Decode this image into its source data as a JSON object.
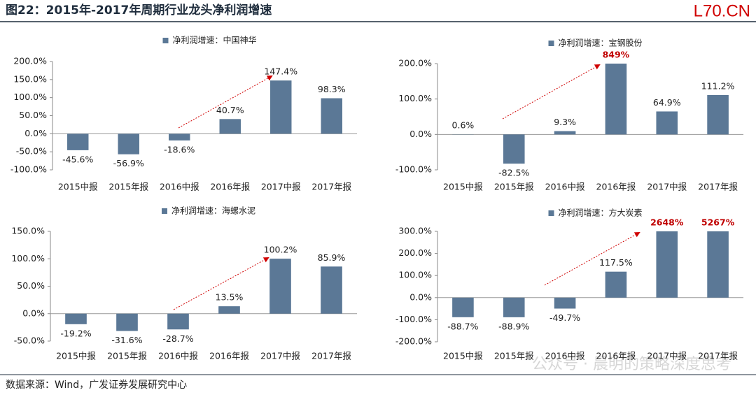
{
  "title": "图22：2015年-2017年周期行业龙头净利润增速",
  "logo": "L70.CN",
  "source": "数据来源：Wind，广发证券发展研究中心",
  "watermark": "公众号 · 晨明的策略深度思考",
  "chart_data": [
    {
      "type": "bar",
      "categories": [
        "2015中报",
        "2015年报",
        "2016中报",
        "2016年报",
        "2017中报",
        "2017年报"
      ],
      "series": [
        {
          "name": "净利润增速：中国神华",
          "color": "#5b7896",
          "values": [
            -45.6,
            -56.9,
            -18.6,
            40.7,
            147.4,
            98.3
          ],
          "value_labels": [
            "-45.6%",
            "-56.9%",
            "-18.6%",
            "40.7%",
            "147.4%",
            "98.3%"
          ]
        }
      ],
      "ylim": [
        -100,
        200
      ],
      "yticks": [
        {
          "value": -100,
          "label": "-100.0%"
        },
        {
          "value": -50,
          "label": "-50.0%"
        },
        {
          "value": 0,
          "label": "0.0%"
        },
        {
          "value": 50,
          "label": "50.0%"
        },
        {
          "value": 100,
          "label": "100.0%"
        },
        {
          "value": 150,
          "label": "150.0%"
        },
        {
          "value": 200,
          "label": "200.0%"
        }
      ],
      "clipped_label_color": "#c00000",
      "legend": "top"
    },
    {
      "type": "bar",
      "categories": [
        "2015中报",
        "2015年报",
        "2016中报",
        "2016年报",
        "2017中报",
        "2017年报"
      ],
      "series": [
        {
          "name": "净利润增速：宝钢股份",
          "color": "#5b7896",
          "values": [
            0.6,
            -82.5,
            9.3,
            849,
            64.9,
            111.2
          ],
          "value_labels": [
            "0.6%",
            "-82.5%",
            "9.3%",
            "849%",
            "64.9%",
            "111.2%"
          ]
        }
      ],
      "ylim": [
        -100,
        200
      ],
      "yticks": [
        {
          "value": -100,
          "label": "-100.0%"
        },
        {
          "value": 0,
          "label": "0.0%"
        },
        {
          "value": 100,
          "label": "100.0%"
        },
        {
          "value": 200,
          "label": "200.0%"
        }
      ],
      "clipped_label_color": "#c00000",
      "legend": "top"
    },
    {
      "type": "bar",
      "categories": [
        "2015中报",
        "2015年报",
        "2016中报",
        "2016年报",
        "2017中报",
        "2017年报"
      ],
      "series": [
        {
          "name": "净利润增速：海螺水泥",
          "color": "#5b7896",
          "values": [
            -19.2,
            -31.6,
            -28.7,
            13.5,
            100.2,
            85.9
          ],
          "value_labels": [
            "-19.2%",
            "-31.6%",
            "-28.7%",
            "13.5%",
            "100.2%",
            "85.9%"
          ]
        }
      ],
      "ylim": [
        -50,
        150
      ],
      "yticks": [
        {
          "value": -50,
          "label": "-50.0%"
        },
        {
          "value": 0,
          "label": "0.0%"
        },
        {
          "value": 50,
          "label": "50.0%"
        },
        {
          "value": 100,
          "label": "100.0%"
        },
        {
          "value": 150,
          "label": "150.0%"
        }
      ],
      "clipped_label_color": "#c00000",
      "legend": "top"
    },
    {
      "type": "bar",
      "categories": [
        "2015中报",
        "2015年报",
        "2016中报",
        "2016年报",
        "2017中报",
        "2017年报"
      ],
      "series": [
        {
          "name": "净利润增速：方大炭素",
          "color": "#5b7896",
          "values": [
            -88.7,
            -88.9,
            -49.7,
            117.5,
            2648,
            5267
          ],
          "value_labels": [
            "-88.7%",
            "-88.9%",
            "-49.7%",
            "117.5%",
            "2648%",
            "5267%"
          ]
        }
      ],
      "ylim": [
        -200,
        300
      ],
      "yticks": [
        {
          "value": -200,
          "label": "-200.0%"
        },
        {
          "value": -100,
          "label": "-100.0%"
        },
        {
          "value": 0,
          "label": "0.0%"
        },
        {
          "value": 100,
          "label": "100.0%"
        },
        {
          "value": 200,
          "label": "200.0%"
        },
        {
          "value": 300,
          "label": "300.0%"
        }
      ],
      "clipped_label_color": "#c00000",
      "legend": "top"
    }
  ]
}
